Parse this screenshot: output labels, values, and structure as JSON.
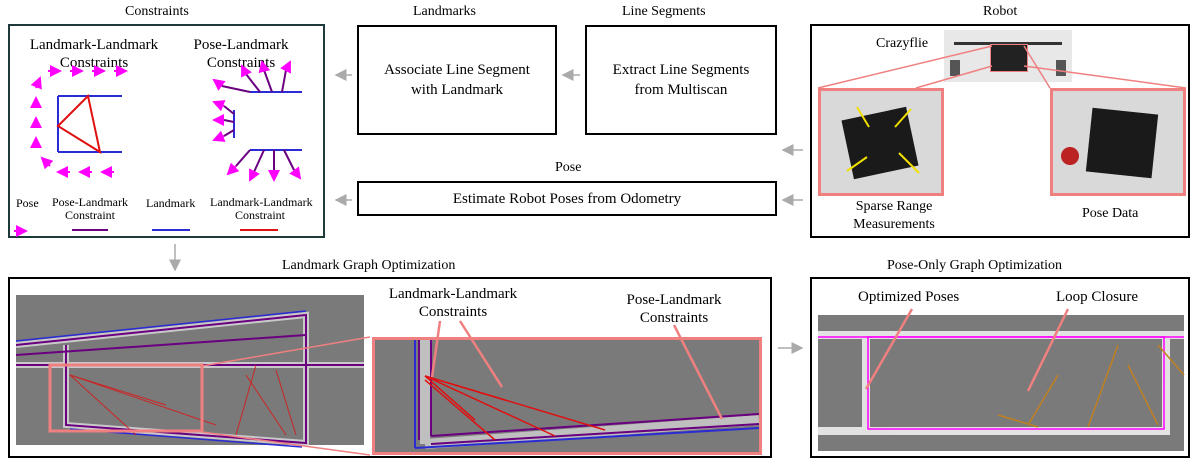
{
  "sections": {
    "constraints": "Constraints",
    "landmarks": "Landmarks",
    "line_segments": "Line Segments",
    "robot": "Robot",
    "pose": "Pose",
    "landmark_graph": "Landmark Graph Optimization",
    "pose_graph": "Pose-Only Graph Optimization"
  },
  "boxes": {
    "associate_line1": "Associate Line Segment",
    "associate_line2": "with Landmark",
    "extract_line1": "Extract Line Segments",
    "extract_line2": "from Multiscan",
    "estimate": "Estimate Robot Poses from Odometry"
  },
  "constraints_panel": {
    "ll_title1": "Landmark-Landmark",
    "ll_title2": "Constraints",
    "pl_title1": "Pose-Landmark",
    "pl_title2": "Constraints",
    "legend_pose": "Pose",
    "legend_pl1": "Pose-Landmark",
    "legend_pl2": "Constraint",
    "legend_landmark": "Landmark",
    "legend_ll1": "Landmark-Landmark",
    "legend_ll2": "Constraint"
  },
  "robot_panel": {
    "crazyflie": "Crazyflie",
    "sparse1": "Sparse Range",
    "sparse2": "Measurements",
    "pose_data": "Pose Data"
  },
  "landmark_graph_panel": {
    "ll1": "Landmark-Landmark",
    "ll2": "Constraints",
    "pl1": "Pose-Landmark",
    "pl2": "Constraints"
  },
  "pose_graph_panel": {
    "optimized": "Optimized Poses",
    "loop": "Loop Closure"
  },
  "colors": {
    "pose": "#ff00ff",
    "pose_landmark": "#6a0080",
    "landmark": "#2b2bd6",
    "landmark_landmark": "#e01010",
    "highlight": "#f08080",
    "map_bg": "#7a7a7a"
  }
}
